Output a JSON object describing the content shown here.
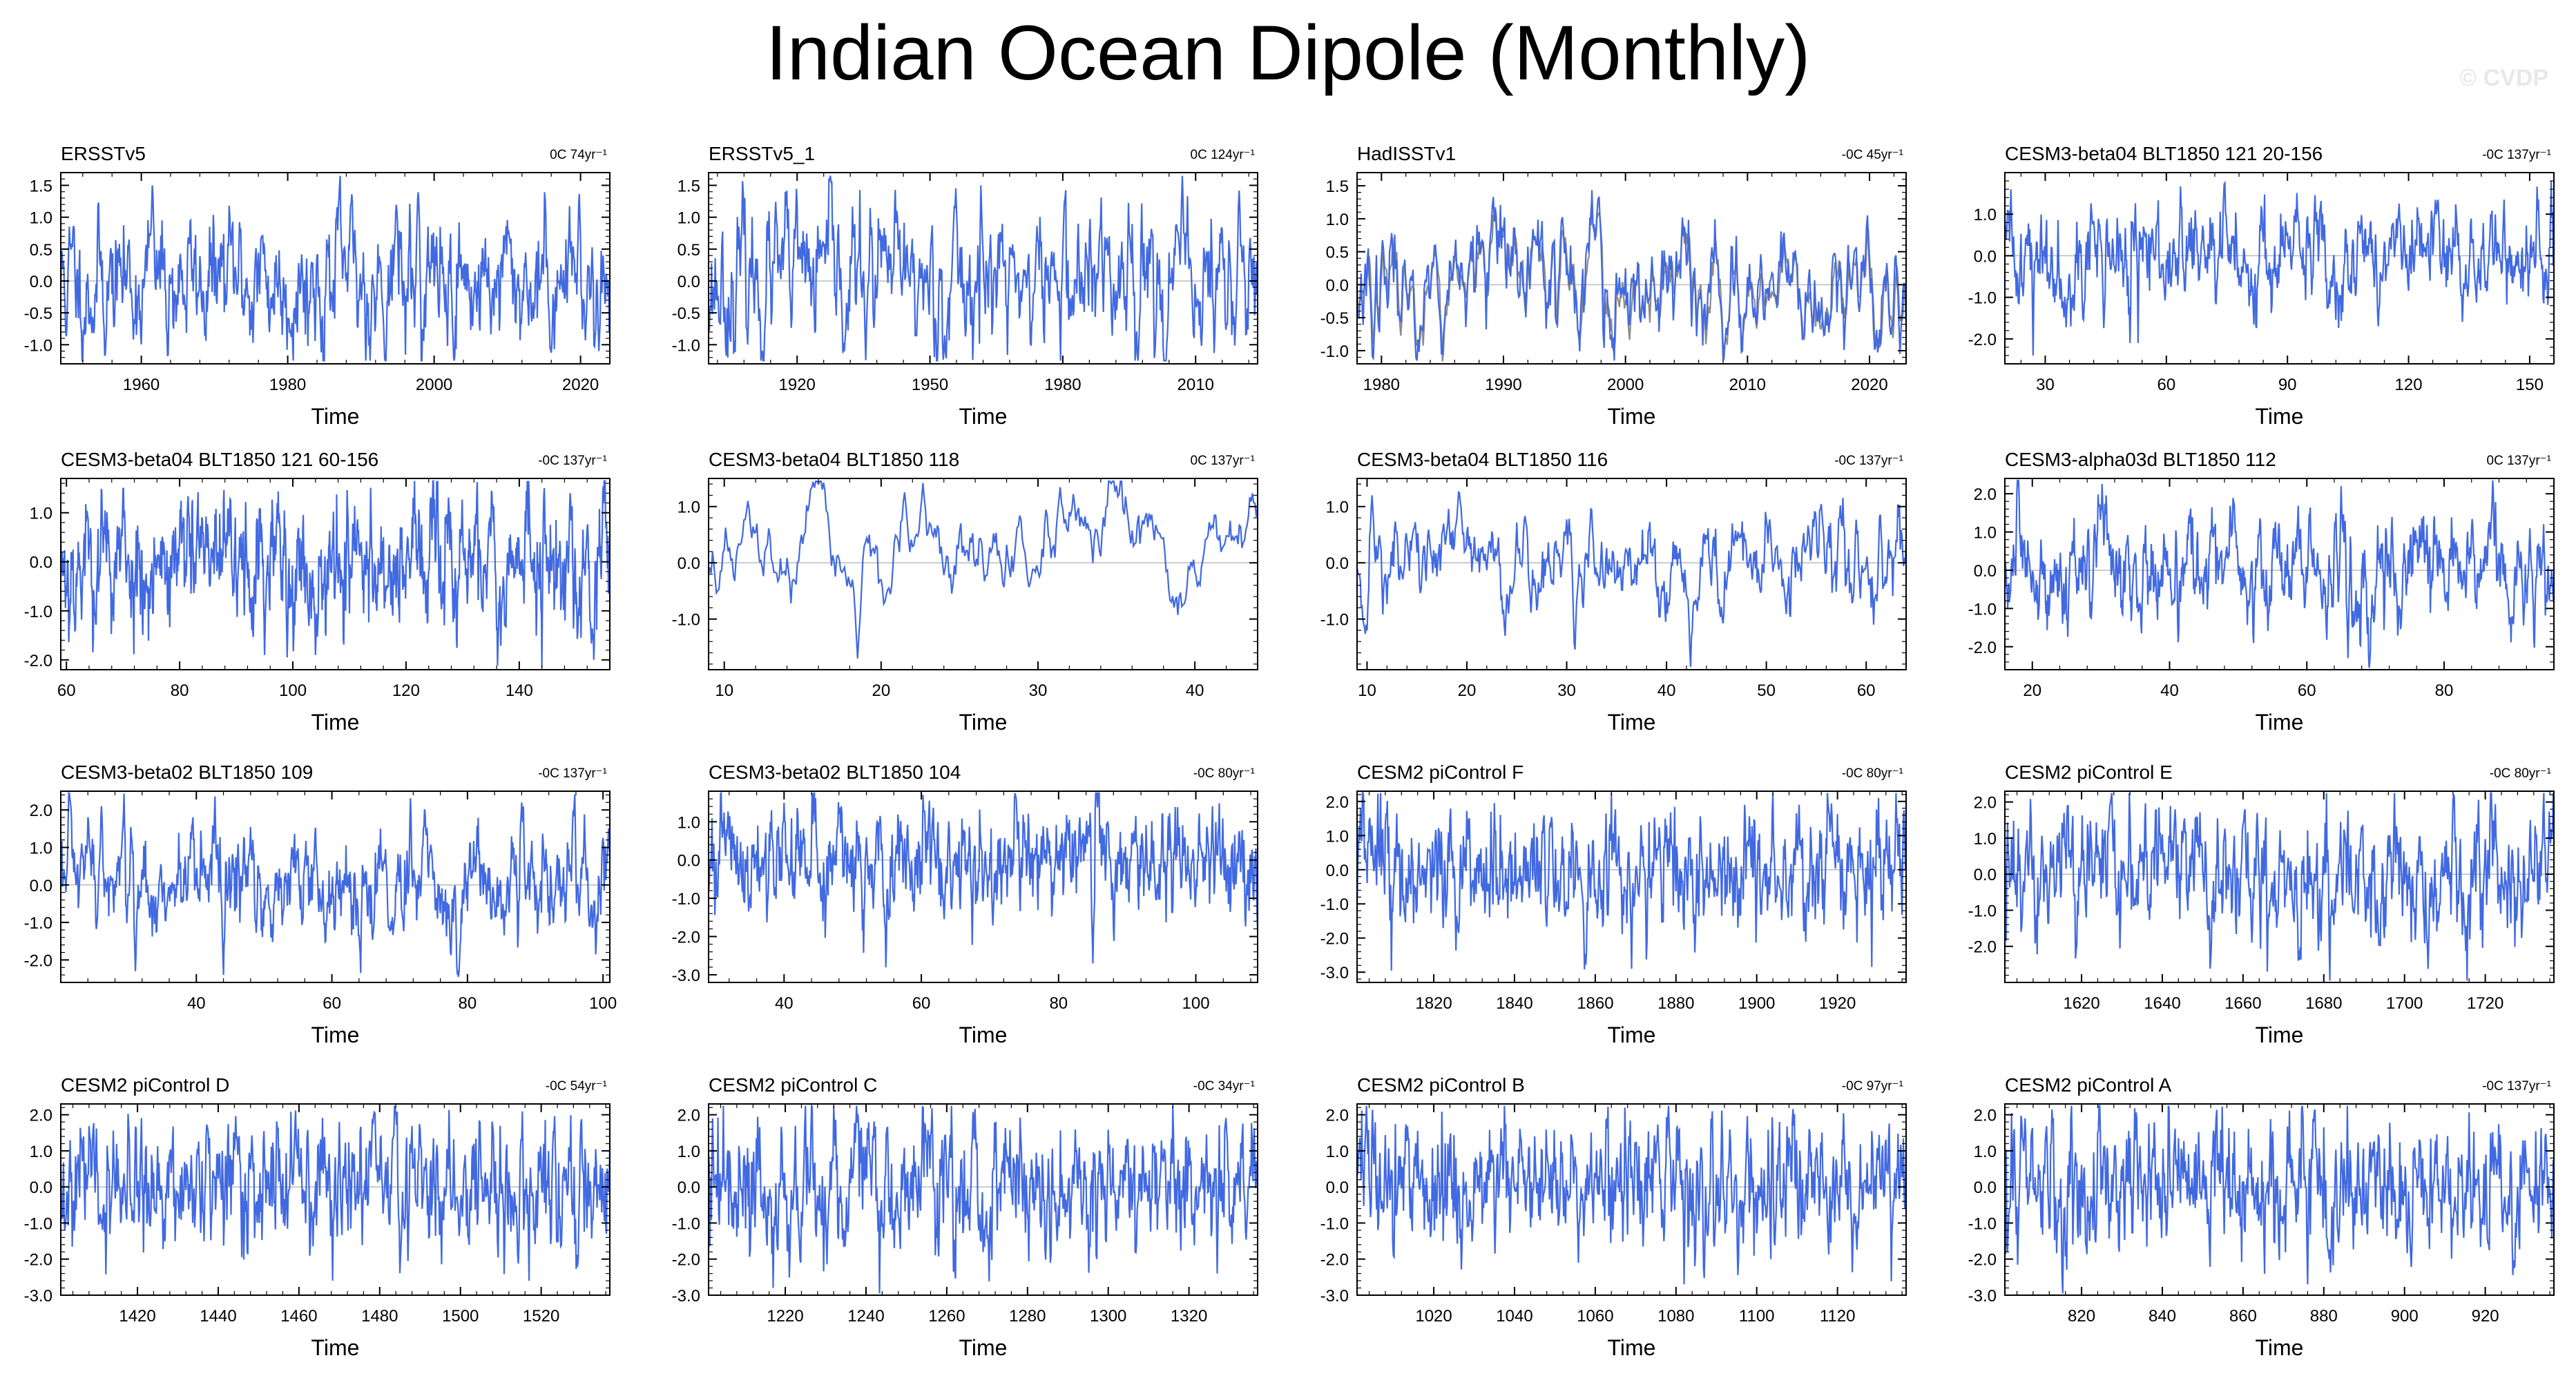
{
  "figure": {
    "title": "Indian Ocean Dipole (Monthly)",
    "watermark": "© CVDP"
  },
  "colors": {
    "series": "#4169e1",
    "obs_overlay": "#8c8c8c",
    "axis": "#000000",
    "zero_line": "#bbbbbb"
  },
  "chart_data": [
    {
      "type": "line",
      "title": "ERSSTv5",
      "trend_note": "0C 74yr⁻¹",
      "xlabel": "Time",
      "ylabel": "",
      "xlim": [
        1949,
        2024
      ],
      "ylim": [
        -1.3,
        1.7
      ],
      "xticks": [
        1960,
        1980,
        2000,
        2020
      ],
      "yticks": [
        -1.0,
        -0.5,
        0.0,
        0.5,
        1.0,
        1.5
      ],
      "ytick_labels": [
        "-1.0",
        "-0.5",
        "0.0",
        "0.5",
        "1.0",
        "1.5"
      ],
      "seed": 11,
      "amp": 0.35,
      "ar": 0.75,
      "spikes": [
        [
          1961.5,
          1.5
        ],
        [
          1994.8,
          1.35
        ],
        [
          1997.8,
          1.5
        ],
        [
          2019.8,
          1.55
        ],
        [
          2015.9,
          -1.1
        ],
        [
          2022.5,
          -1.1
        ]
      ]
    },
    {
      "type": "line",
      "title": "ERSSTv5_1",
      "trend_note": "0C 124yr⁻¹",
      "xlabel": "Time",
      "ylabel": "",
      "xlim": [
        1900,
        2024
      ],
      "ylim": [
        -1.3,
        1.7
      ],
      "xticks": [
        1920,
        1950,
        1980,
        2010
      ],
      "yticks": [
        -1.0,
        -0.5,
        0.0,
        0.5,
        1.0,
        1.5
      ],
      "ytick_labels": [
        "-1.0",
        "-0.5",
        "0.0",
        "0.5",
        "1.0",
        "1.5"
      ],
      "seed": 23,
      "amp": 0.38,
      "ar": 0.72,
      "spikes": [
        [
          1961.5,
          1.5
        ],
        [
          1994.8,
          1.4
        ],
        [
          1997.8,
          1.5
        ],
        [
          2019.8,
          1.5
        ]
      ]
    },
    {
      "type": "line",
      "title": "HadISSTv1",
      "trend_note": "-0C 45yr⁻¹",
      "xlabel": "Time",
      "ylabel": "",
      "xlim": [
        1978,
        2023
      ],
      "ylim": [
        -1.2,
        1.7
      ],
      "xticks": [
        1980,
        1990,
        2000,
        2010,
        2020
      ],
      "yticks": [
        -1.0,
        -0.5,
        0.0,
        0.5,
        1.0,
        1.5
      ],
      "ytick_labels": [
        "-1.0",
        "-0.5",
        "0.0",
        "0.5",
        "1.0",
        "1.5"
      ],
      "seed": 37,
      "amp": 0.32,
      "ar": 0.78,
      "overlay": true,
      "spikes": [
        [
          1994.8,
          1.15
        ],
        [
          1997.8,
          1.45
        ],
        [
          2019.8,
          1.2
        ],
        [
          2022.5,
          -1.05
        ]
      ]
    },
    {
      "type": "line",
      "title": "CESM3-beta04 BLT1850 121 20-156",
      "trend_note": "-0C 137yr⁻¹",
      "xlabel": "Time",
      "ylabel": "",
      "xlim": [
        20,
        156
      ],
      "ylim": [
        -2.6,
        2.0
      ],
      "xticks": [
        30,
        60,
        90,
        120,
        150
      ],
      "yticks": [
        -2.0,
        -1.0,
        0.0,
        1.0
      ],
      "ytick_labels": [
        "-2.0",
        "-1.0",
        "0.0",
        "1.0"
      ],
      "seed": 41,
      "amp": 0.42,
      "ar": 0.7,
      "spikes": [
        [
          21.5,
          1.6
        ],
        [
          27,
          -2.4
        ],
        [
          51,
          -2.1
        ],
        [
          53,
          -2.1
        ]
      ]
    },
    {
      "type": "line",
      "title": "CESM3-beta04 BLT1850 121 60-156",
      "trend_note": "-0C 137yr⁻¹",
      "xlabel": "Time",
      "ylabel": "",
      "xlim": [
        59,
        156
      ],
      "ylim": [
        -2.2,
        1.7
      ],
      "xticks": [
        60,
        80,
        100,
        120,
        140
      ],
      "yticks": [
        -2.0,
        -1.0,
        0.0,
        1.0
      ],
      "ytick_labels": [
        "-2.0",
        "-1.0",
        "0.0",
        "1.0"
      ],
      "seed": 53,
      "amp": 0.45,
      "ar": 0.72,
      "spikes": [
        [
          95,
          -1.9
        ],
        [
          99,
          -1.95
        ],
        [
          104,
          -1.9
        ],
        [
          149,
          1.4
        ]
      ]
    },
    {
      "type": "line",
      "title": "CESM3-beta04 BLT1850 118",
      "trend_note": "0C 137yr⁻¹",
      "xlabel": "Time",
      "ylabel": "",
      "xlim": [
        9,
        44
      ],
      "ylim": [
        -1.9,
        1.5
      ],
      "xticks": [
        10,
        20,
        30,
        40
      ],
      "yticks": [
        -1.0,
        0.0,
        1.0
      ],
      "ytick_labels": [
        "-1.0",
        "0.0",
        "1.0"
      ],
      "seed": 67,
      "amp": 0.3,
      "ar": 0.9,
      "spikes": [
        [
          11.5,
          1.1
        ],
        [
          18.5,
          -1.7
        ]
      ]
    },
    {
      "type": "line",
      "title": "CESM3-beta04 BLT1850 116",
      "trend_note": "-0C 137yr⁻¹",
      "xlabel": "Time",
      "ylabel": "",
      "xlim": [
        9,
        64
      ],
      "ylim": [
        -1.9,
        1.5
      ],
      "xticks": [
        10,
        20,
        30,
        40,
        50,
        60
      ],
      "yticks": [
        -1.0,
        0.0,
        1.0
      ],
      "ytick_labels": [
        "-1.0",
        "0.0",
        "1.0"
      ],
      "seed": 71,
      "amp": 0.33,
      "ar": 0.85,
      "spikes": [
        [
          10.5,
          1.2
        ],
        [
          30.8,
          -1.7
        ]
      ]
    },
    {
      "type": "line",
      "title": "CESM3-alpha03d BLT1850 112",
      "trend_note": "0C 137yr⁻¹",
      "xlabel": "Time",
      "ylabel": "",
      "xlim": [
        16,
        96
      ],
      "ylim": [
        -2.6,
        2.4
      ],
      "xticks": [
        20,
        40,
        60,
        80
      ],
      "yticks": [
        -2.0,
        -1.0,
        0.0,
        1.0,
        2.0
      ],
      "ytick_labels": [
        "-2.0",
        "-1.0",
        "0.0",
        "1.0",
        "2.0"
      ],
      "seed": 83,
      "amp": 0.5,
      "ar": 0.8,
      "spikes": [
        [
          65,
          2.2
        ],
        [
          66,
          -2.3
        ]
      ]
    },
    {
      "type": "line",
      "title": "CESM3-beta02 BLT1850 109",
      "trend_note": "-0C 137yr⁻¹",
      "xlabel": "Time",
      "ylabel": "",
      "xlim": [
        20,
        101
      ],
      "ylim": [
        -2.6,
        2.5
      ],
      "xticks": [
        40,
        60,
        80,
        100
      ],
      "yticks": [
        -2.0,
        -1.0,
        0.0,
        1.0,
        2.0
      ],
      "ytick_labels": [
        "-2.0",
        "-1.0",
        "0.0",
        "1.0",
        "2.0"
      ],
      "seed": 97,
      "amp": 0.5,
      "ar": 0.78,
      "spikes": [
        [
          26,
          2.1
        ],
        [
          88,
          2.2
        ],
        [
          44,
          -2.4
        ],
        [
          31,
          -2.3
        ]
      ]
    },
    {
      "type": "line",
      "title": "CESM3-beta02 BLT1850 104",
      "trend_note": "-0C 80yr⁻¹",
      "xlabel": "Time",
      "ylabel": "",
      "xlim": [
        29,
        109
      ],
      "ylim": [
        -3.2,
        1.8
      ],
      "xticks": [
        40,
        60,
        80,
        100
      ],
      "yticks": [
        -3.0,
        -2.0,
        -1.0,
        0.0,
        1.0
      ],
      "ytick_labels": [
        "-3.0",
        "-2.0",
        "-1.0",
        "0.0",
        "1.0"
      ],
      "seed": 101,
      "amp": 0.5,
      "ar": 0.72,
      "spikes": [
        [
          85,
          -2.7
        ],
        [
          40,
          1.5
        ]
      ]
    },
    {
      "type": "line",
      "title": "CESM2 piControl F",
      "trend_note": "-0C 80yr⁻¹",
      "xlabel": "Time",
      "ylabel": "",
      "xlim": [
        1801,
        1937
      ],
      "ylim": [
        -3.3,
        2.3
      ],
      "xticks": [
        1820,
        1840,
        1860,
        1880,
        1900,
        1920
      ],
      "yticks": [
        -3.0,
        -2.0,
        -1.0,
        0.0,
        1.0,
        2.0
      ],
      "ytick_labels": [
        "-3.0",
        "-2.0",
        "-1.0",
        "0.0",
        "1.0",
        "2.0"
      ],
      "seed": 113,
      "amp": 0.6,
      "ar": 0.6,
      "spikes": [
        [
          1869,
          -2.9
        ],
        [
          1897,
          1.9
        ]
      ]
    },
    {
      "type": "line",
      "title": "CESM2 piControl E",
      "trend_note": "-0C 80yr⁻¹",
      "xlabel": "Time",
      "ylabel": "",
      "xlim": [
        1601,
        1737
      ],
      "ylim": [
        -3.0,
        2.3
      ],
      "xticks": [
        1620,
        1640,
        1660,
        1680,
        1700,
        1720
      ],
      "yticks": [
        -2.0,
        -1.0,
        0.0,
        1.0,
        2.0
      ],
      "ytick_labels": [
        "-2.0",
        "-1.0",
        "0.0",
        "1.0",
        "2.0"
      ],
      "seed": 127,
      "amp": 0.58,
      "ar": 0.6,
      "spikes": [
        [
          1666,
          -2.7
        ],
        [
          1627,
          1.9
        ]
      ]
    },
    {
      "type": "line",
      "title": "CESM2 piControl D",
      "trend_note": "-0C 54yr⁻¹",
      "xlabel": "Time",
      "ylabel": "",
      "xlim": [
        1401,
        1537
      ],
      "ylim": [
        -3.0,
        2.3
      ],
      "xticks": [
        1420,
        1440,
        1460,
        1480,
        1500,
        1520
      ],
      "yticks": [
        -3.0,
        -2.0,
        -1.0,
        0.0,
        1.0,
        2.0
      ],
      "ytick_labels": [
        "-3.0",
        "-2.0",
        "-1.0",
        "0.0",
        "1.0",
        "2.0"
      ],
      "seed": 131,
      "amp": 0.6,
      "ar": 0.6,
      "spikes": [
        [
          1517,
          -2.6
        ],
        [
          1470,
          1.8
        ]
      ]
    },
    {
      "type": "line",
      "title": "CESM2 piControl C",
      "trend_note": "-0C 34yr⁻¹",
      "xlabel": "Time",
      "ylabel": "",
      "xlim": [
        1201,
        1337
      ],
      "ylim": [
        -3.0,
        2.3
      ],
      "xticks": [
        1220,
        1240,
        1260,
        1280,
        1300,
        1320
      ],
      "yticks": [
        -3.0,
        -2.0,
        -1.0,
        0.0,
        1.0,
        2.0
      ],
      "ytick_labels": [
        "-3.0",
        "-2.0",
        "-1.0",
        "0.0",
        "1.0",
        "2.0"
      ],
      "seed": 139,
      "amp": 0.6,
      "ar": 0.6,
      "spikes": [
        [
          1327,
          -2.4
        ],
        [
          1202,
          1.9
        ]
      ]
    },
    {
      "type": "line",
      "title": "CESM2 piControl B",
      "trend_note": "-0C 97yr⁻¹",
      "xlabel": "Time",
      "ylabel": "",
      "xlim": [
        1001,
        1137
      ],
      "ylim": [
        -3.0,
        2.3
      ],
      "xticks": [
        1020,
        1040,
        1060,
        1080,
        1100,
        1120
      ],
      "yticks": [
        -3.0,
        -2.0,
        -1.0,
        0.0,
        1.0,
        2.0
      ],
      "ytick_labels": [
        "-3.0",
        "-2.0",
        "-1.0",
        "0.0",
        "1.0",
        "2.0"
      ],
      "seed": 149,
      "amp": 0.6,
      "ar": 0.6,
      "spikes": [
        [
          1082,
          -2.7
        ],
        [
          1089,
          2.1
        ]
      ]
    },
    {
      "type": "line",
      "title": "CESM2 piControl A",
      "trend_note": "-0C 137yr⁻¹",
      "xlabel": "Time",
      "ylabel": "",
      "xlim": [
        801,
        937
      ],
      "ylim": [
        -3.0,
        2.3
      ],
      "xticks": [
        820,
        840,
        860,
        880,
        900,
        920
      ],
      "yticks": [
        -3.0,
        -2.0,
        -1.0,
        0.0,
        1.0,
        2.0
      ],
      "ytick_labels": [
        "-3.0",
        "-2.0",
        "-1.0",
        "0.0",
        "1.0",
        "2.0"
      ],
      "seed": 157,
      "amp": 0.6,
      "ar": 0.6,
      "spikes": [
        [
          876,
          -2.7
        ],
        [
          806,
          1.9
        ]
      ]
    }
  ]
}
